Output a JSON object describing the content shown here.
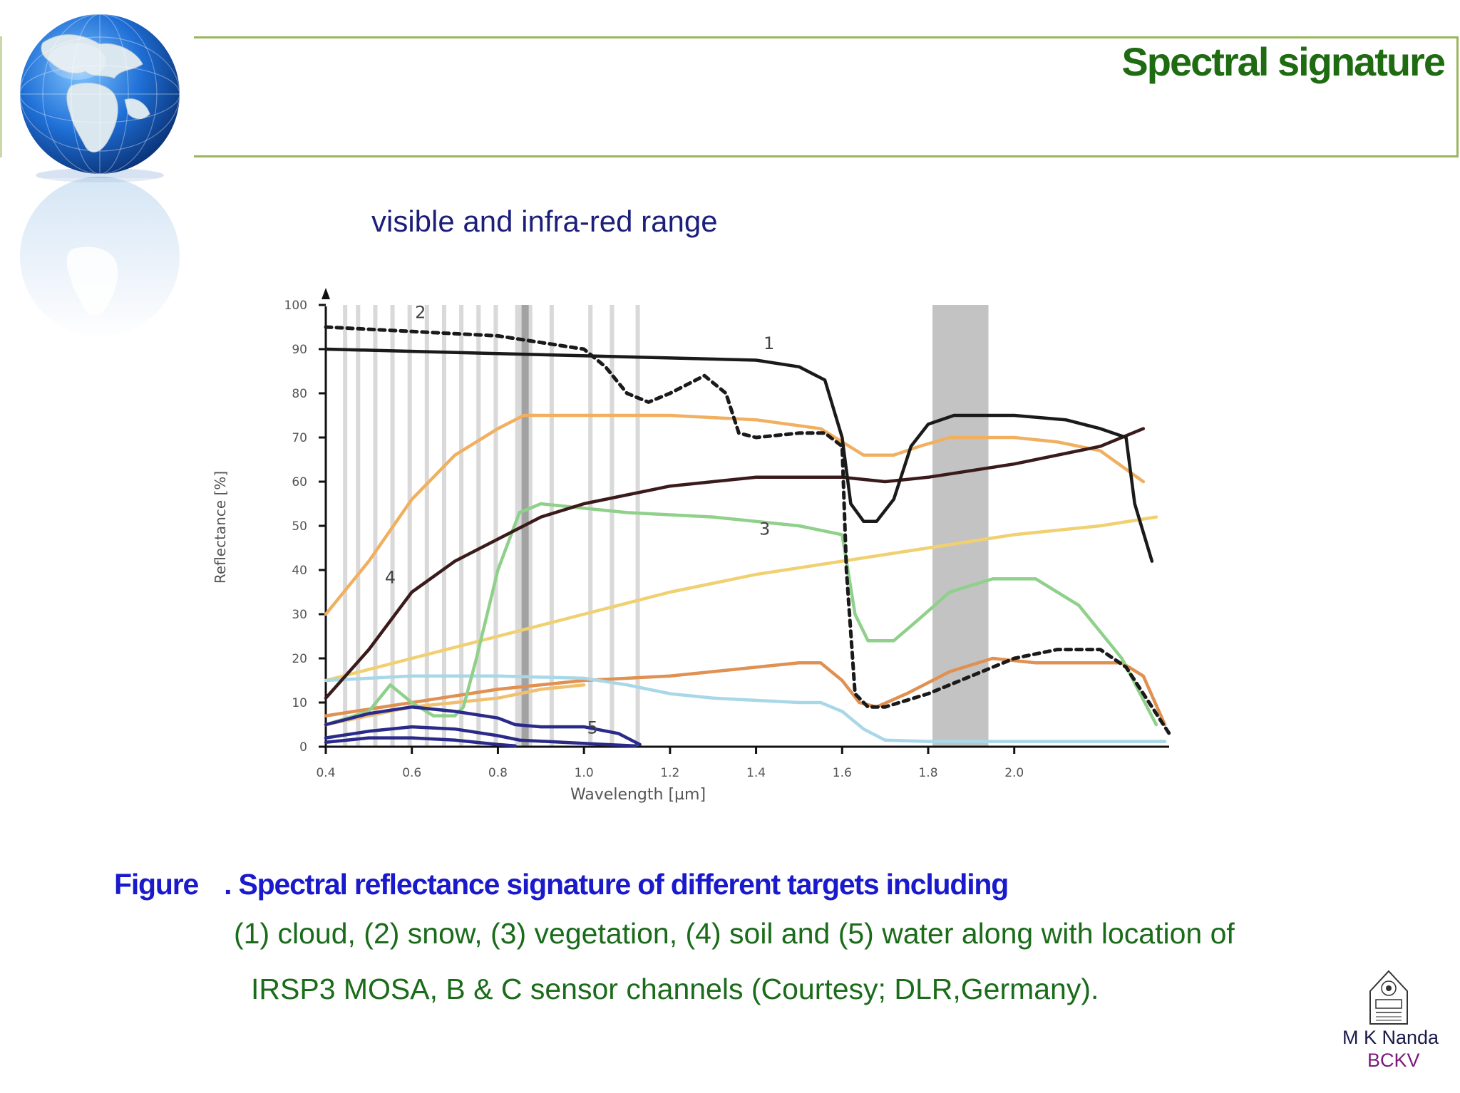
{
  "slide": {
    "title": "Spectral signature",
    "subtitle": "visible and infra-red range"
  },
  "caption": {
    "figure_label": "Figure",
    "line1": ". Spectral reflectance signature of different targets including",
    "line2": "(1) cloud, (2) snow, (3) vegetation, (4) soil and (5) water along with location of",
    "line3": "IRSP3 MOSA, B & C sensor channels (Courtesy; DLR,Germany)."
  },
  "footer": {
    "author": "M K Nanda",
    "institution": "BCKV"
  },
  "colors": {
    "title_green": "#1e6b12",
    "subtitle_navy": "#1b1f7a",
    "caption_blue": "#1a1acc",
    "caption_green": "#1a6b1a",
    "header_rule": "#9ab65c"
  },
  "chart_data": {
    "type": "line",
    "xlabel": "Wavelength [µm]",
    "ylabel": "Reflectance [%]",
    "xlim": [
      0.4,
      2.36
    ],
    "ylim": [
      0,
      100
    ],
    "x_ticks": [
      "0.4",
      "0.6",
      "0.8",
      "1.0",
      "1.2",
      "1.4",
      "1.6",
      "1.8",
      "2.0"
    ],
    "y_ticks": [
      "0",
      "10",
      "20",
      "30",
      "40",
      "50",
      "60",
      "70",
      "80",
      "90",
      "100"
    ],
    "sensor_channels": [
      {
        "x0": 0.44,
        "x1": 0.45
      },
      {
        "x0": 0.47,
        "x1": 0.48
      },
      {
        "x0": 0.51,
        "x1": 0.52
      },
      {
        "x0": 0.55,
        "x1": 0.56
      },
      {
        "x0": 0.59,
        "x1": 0.6
      },
      {
        "x0": 0.63,
        "x1": 0.64
      },
      {
        "x0": 0.67,
        "x1": 0.68
      },
      {
        "x0": 0.71,
        "x1": 0.72
      },
      {
        "x0": 0.75,
        "x1": 0.76
      },
      {
        "x0": 0.79,
        "x1": 0.8
      },
      {
        "x0": 0.84,
        "x1": 0.88
      },
      {
        "x0": 0.92,
        "x1": 0.93
      },
      {
        "x0": 1.01,
        "x1": 1.02
      },
      {
        "x0": 1.06,
        "x1": 1.07
      },
      {
        "x0": 1.12,
        "x1": 1.13
      },
      {
        "x0": 1.81,
        "x1": 1.94
      }
    ],
    "series": [
      {
        "name": "1",
        "color": "#1a1a1a",
        "dashed": false,
        "x": [
          0.4,
          0.8,
          1.2,
          1.4,
          1.5,
          1.56,
          1.6,
          1.62,
          1.65,
          1.68,
          1.72,
          1.76,
          1.8,
          1.86,
          2.0,
          2.12,
          2.2,
          2.26,
          2.28,
          2.32
        ],
        "y": [
          90,
          89,
          88,
          87.5,
          86,
          83,
          70,
          55,
          51,
          51,
          56,
          68,
          73,
          75,
          75,
          74,
          72,
          70,
          55,
          42
        ],
        "label_x": 1.43,
        "label_y": 90
      },
      {
        "name": "2",
        "color": "#1a1a1a",
        "dashed": true,
        "x": [
          0.4,
          0.8,
          1.0,
          1.05,
          1.1,
          1.15,
          1.2,
          1.28,
          1.33,
          1.36,
          1.4,
          1.5,
          1.56,
          1.6,
          1.61,
          1.63,
          1.66,
          1.7,
          1.8,
          1.9,
          2.0,
          2.1,
          2.2,
          2.26,
          2.32,
          2.36
        ],
        "y": [
          95,
          93,
          90,
          86,
          80,
          78,
          80,
          84,
          80,
          71,
          70,
          71,
          71,
          68,
          40,
          12,
          9,
          9,
          12,
          16,
          20,
          22,
          22,
          18,
          9,
          3
        ],
        "label_x": 0.62,
        "label_y": 97
      },
      {
        "name": "3",
        "color": "#8fd08a",
        "dashed": false,
        "x": [
          0.4,
          0.5,
          0.55,
          0.6,
          0.65,
          0.7,
          0.72,
          0.75,
          0.8,
          0.85,
          0.9,
          1.0,
          1.1,
          1.3,
          1.5,
          1.6,
          1.63,
          1.66,
          1.72,
          1.78,
          1.85,
          1.95,
          2.05,
          2.15,
          2.25,
          2.33
        ],
        "y": [
          5,
          8,
          14,
          10,
          7,
          7,
          9,
          20,
          40,
          53,
          55,
          54,
          53,
          52,
          50,
          48,
          30,
          24,
          24,
          29,
          35,
          38,
          38,
          32,
          20,
          5
        ],
        "label_x": 1.42,
        "label_y": 48
      },
      {
        "name": "4",
        "color": "#3a1a1a",
        "dashed": false,
        "x": [
          0.4,
          0.5,
          0.6,
          0.7,
          0.8,
          0.9,
          1.0,
          1.2,
          1.4,
          1.6,
          1.7,
          1.8,
          2.0,
          2.2,
          2.3
        ],
        "y": [
          11,
          22,
          35,
          42,
          47,
          52,
          55,
          59,
          61,
          61,
          60,
          61,
          64,
          68,
          72
        ],
        "label_x": 0.55,
        "label_y": 37
      },
      {
        "name": "5",
        "color": "#2a2a8a",
        "dashed": false,
        "x": [
          0.4,
          0.5,
          0.6,
          0.7,
          0.8,
          0.85,
          0.95,
          1.05,
          1.12
        ],
        "y": [
          2,
          3.5,
          4.5,
          4,
          2.5,
          1.5,
          1,
          0.5,
          0.2
        ],
        "label_x": 1.02,
        "label_y": 3
      },
      {
        "name": "",
        "color": "#2a2a8a",
        "dashed": false,
        "x": [
          0.4,
          0.5,
          0.6,
          0.7,
          0.8,
          0.84,
          0.9,
          1.0,
          1.08,
          1.13
        ],
        "y": [
          5,
          7.5,
          9,
          8,
          6.5,
          5,
          4.5,
          4.5,
          3,
          0.5
        ]
      },
      {
        "name": "",
        "color": "#2a2a8a",
        "dashed": false,
        "x": [
          0.4,
          0.5,
          0.6,
          0.7,
          0.8,
          0.84
        ],
        "y": [
          1,
          2,
          2,
          1.5,
          0.5,
          0.2
        ]
      },
      {
        "name": "",
        "color": "#f0b060",
        "dashed": false,
        "x": [
          0.4,
          0.5,
          0.6,
          0.7,
          0.8,
          0.86,
          0.95,
          1.2,
          1.4,
          1.55,
          1.6,
          1.65,
          1.72,
          1.78,
          1.85,
          2.0,
          2.1,
          2.2,
          2.3
        ],
        "y": [
          30,
          42,
          56,
          66,
          72,
          75,
          75,
          75,
          74,
          72,
          69,
          66,
          66,
          68,
          70,
          70,
          69,
          67,
          60
        ]
      },
      {
        "name": "",
        "color": "#f0d070",
        "dashed": false,
        "x": [
          0.4,
          0.6,
          0.8,
          1.0,
          1.2,
          1.4,
          1.6,
          1.8,
          2.0,
          2.2,
          2.33
        ],
        "y": [
          15,
          20,
          25,
          30,
          35,
          39,
          42,
          45,
          48,
          50,
          52
        ]
      },
      {
        "name": "",
        "color": "#e09050",
        "dashed": false,
        "x": [
          0.4,
          0.6,
          0.8,
          1.0,
          1.2,
          1.4,
          1.5,
          1.55,
          1.6,
          1.64,
          1.68,
          1.75,
          1.85,
          1.95,
          2.05,
          2.15,
          2.25,
          2.3,
          2.35
        ],
        "y": [
          7,
          10,
          13,
          15,
          16,
          18,
          19,
          19,
          15,
          10,
          9,
          12,
          17,
          20,
          19,
          19,
          19,
          16,
          5
        ]
      },
      {
        "name": "",
        "color": "#a8d8e8",
        "dashed": false,
        "x": [
          0.4,
          0.6,
          0.8,
          1.0,
          1.1,
          1.2,
          1.3,
          1.5,
          1.55,
          1.6,
          1.65,
          1.7,
          1.8,
          2.0,
          2.2,
          2.35
        ],
        "y": [
          15,
          16,
          16,
          15.5,
          14,
          12,
          11,
          10,
          10,
          8,
          4,
          1.5,
          1.2,
          1.2,
          1.2,
          1.2
        ]
      },
      {
        "name": "",
        "color": "#f0c070",
        "dashed": false,
        "x": [
          0.4,
          0.5,
          0.6,
          0.7,
          0.8,
          0.9,
          1.0
        ],
        "y": [
          5,
          7,
          9,
          10,
          11,
          13,
          14
        ]
      }
    ]
  }
}
